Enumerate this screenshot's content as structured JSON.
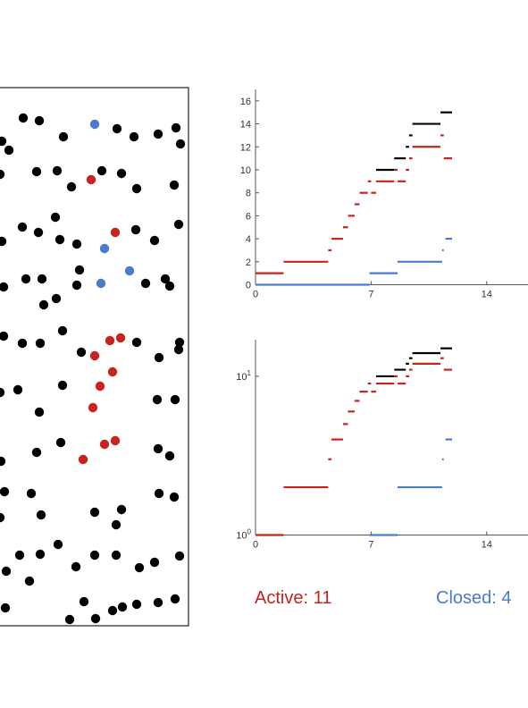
{
  "status": {
    "active_label": "Active: 11",
    "closed_label": "Closed: 4"
  },
  "colors": {
    "background": "#ffffff",
    "default": "#000000",
    "active": "#c8231c",
    "closed": "#4a7bd0",
    "axis": "#555555"
  },
  "chart_data": [
    {
      "type": "line",
      "title": "",
      "xlabel": "",
      "ylabel": "",
      "xlim": [
        0,
        16.5
      ],
      "ylim": [
        0,
        17
      ],
      "x_ticks": [
        0,
        7,
        14
      ],
      "y_ticks": [
        0,
        2,
        4,
        6,
        8,
        10,
        12,
        14,
        16
      ],
      "y_scale": "linear",
      "grid": false,
      "series": [
        {
          "color": "#4a7bd0",
          "segments": [
            [
              0,
              6.9,
              0
            ],
            [
              6.9,
              8.6,
              1
            ],
            [
              8.6,
              11.3,
              2
            ],
            [
              11.3,
              11.4,
              3
            ],
            [
              11.5,
              11.9,
              4
            ]
          ]
        },
        {
          "color": "#c8231c",
          "segments": [
            [
              0,
              1.7,
              1
            ],
            [
              1.7,
              4.4,
              2
            ],
            [
              4.4,
              4.6,
              3
            ],
            [
              4.6,
              5.3,
              4
            ],
            [
              5.3,
              5.6,
              5
            ],
            [
              5.6,
              6,
              6
            ],
            [
              6,
              6.3,
              7
            ],
            [
              6.3,
              6.8,
              8
            ],
            [
              6.8,
              7,
              9
            ],
            [
              7,
              7.3,
              8
            ],
            [
              7.3,
              8.4,
              9
            ],
            [
              8.4,
              8.6,
              10
            ],
            [
              8.6,
              9.1,
              9
            ],
            [
              9.1,
              9.3,
              10
            ],
            [
              9.3,
              9.5,
              11
            ],
            [
              9.5,
              11.2,
              12
            ],
            [
              11.2,
              11.4,
              13
            ],
            [
              11.4,
              11.9,
              11
            ]
          ]
        },
        {
          "color": "#000000",
          "segments": [
            [
              7.3,
              8.4,
              10
            ],
            [
              8.4,
              9.1,
              11
            ],
            [
              9.1,
              9.3,
              12
            ],
            [
              9.3,
              9.5,
              13
            ],
            [
              9.5,
              11.2,
              14
            ],
            [
              11.2,
              11.9,
              15
            ]
          ]
        }
      ]
    },
    {
      "type": "line",
      "title": "",
      "xlabel": "",
      "ylabel": "",
      "xlim": [
        0,
        16.5
      ],
      "ylim": [
        1,
        17
      ],
      "x_ticks": [
        0,
        7,
        14
      ],
      "y_ticks": [
        1,
        10
      ],
      "y_tick_labels": [
        "10^0",
        "10^1"
      ],
      "y_scale": "log",
      "grid": false,
      "series": [
        {
          "color": "#4a7bd0",
          "segments": [
            [
              6.9,
              8.6,
              1
            ],
            [
              8.6,
              11.3,
              2
            ],
            [
              11.3,
              11.4,
              3
            ],
            [
              11.5,
              11.9,
              4
            ]
          ]
        },
        {
          "color": "#c8231c",
          "segments": [
            [
              0,
              1.7,
              1
            ],
            [
              1.7,
              4.4,
              2
            ],
            [
              4.4,
              4.6,
              3
            ],
            [
              4.6,
              5.3,
              4
            ],
            [
              5.3,
              5.6,
              5
            ],
            [
              5.6,
              6,
              6
            ],
            [
              6,
              6.3,
              7
            ],
            [
              6.3,
              6.8,
              8
            ],
            [
              6.8,
              7,
              9
            ],
            [
              7,
              7.3,
              8
            ],
            [
              7.3,
              8.4,
              9
            ],
            [
              8.4,
              8.6,
              10
            ],
            [
              8.6,
              9.1,
              9
            ],
            [
              9.1,
              9.3,
              10
            ],
            [
              9.3,
              9.5,
              11
            ],
            [
              9.5,
              11.2,
              12
            ],
            [
              11.2,
              11.4,
              13
            ],
            [
              11.4,
              11.9,
              11
            ]
          ]
        },
        {
          "color": "#000000",
          "segments": [
            [
              7.3,
              8.4,
              10
            ],
            [
              8.4,
              9.1,
              11
            ],
            [
              9.1,
              9.3,
              12
            ],
            [
              9.3,
              9.5,
              13
            ],
            [
              9.5,
              11.2,
              14
            ],
            [
              11.2,
              11.9,
              15
            ]
          ]
        }
      ]
    }
  ]
}
